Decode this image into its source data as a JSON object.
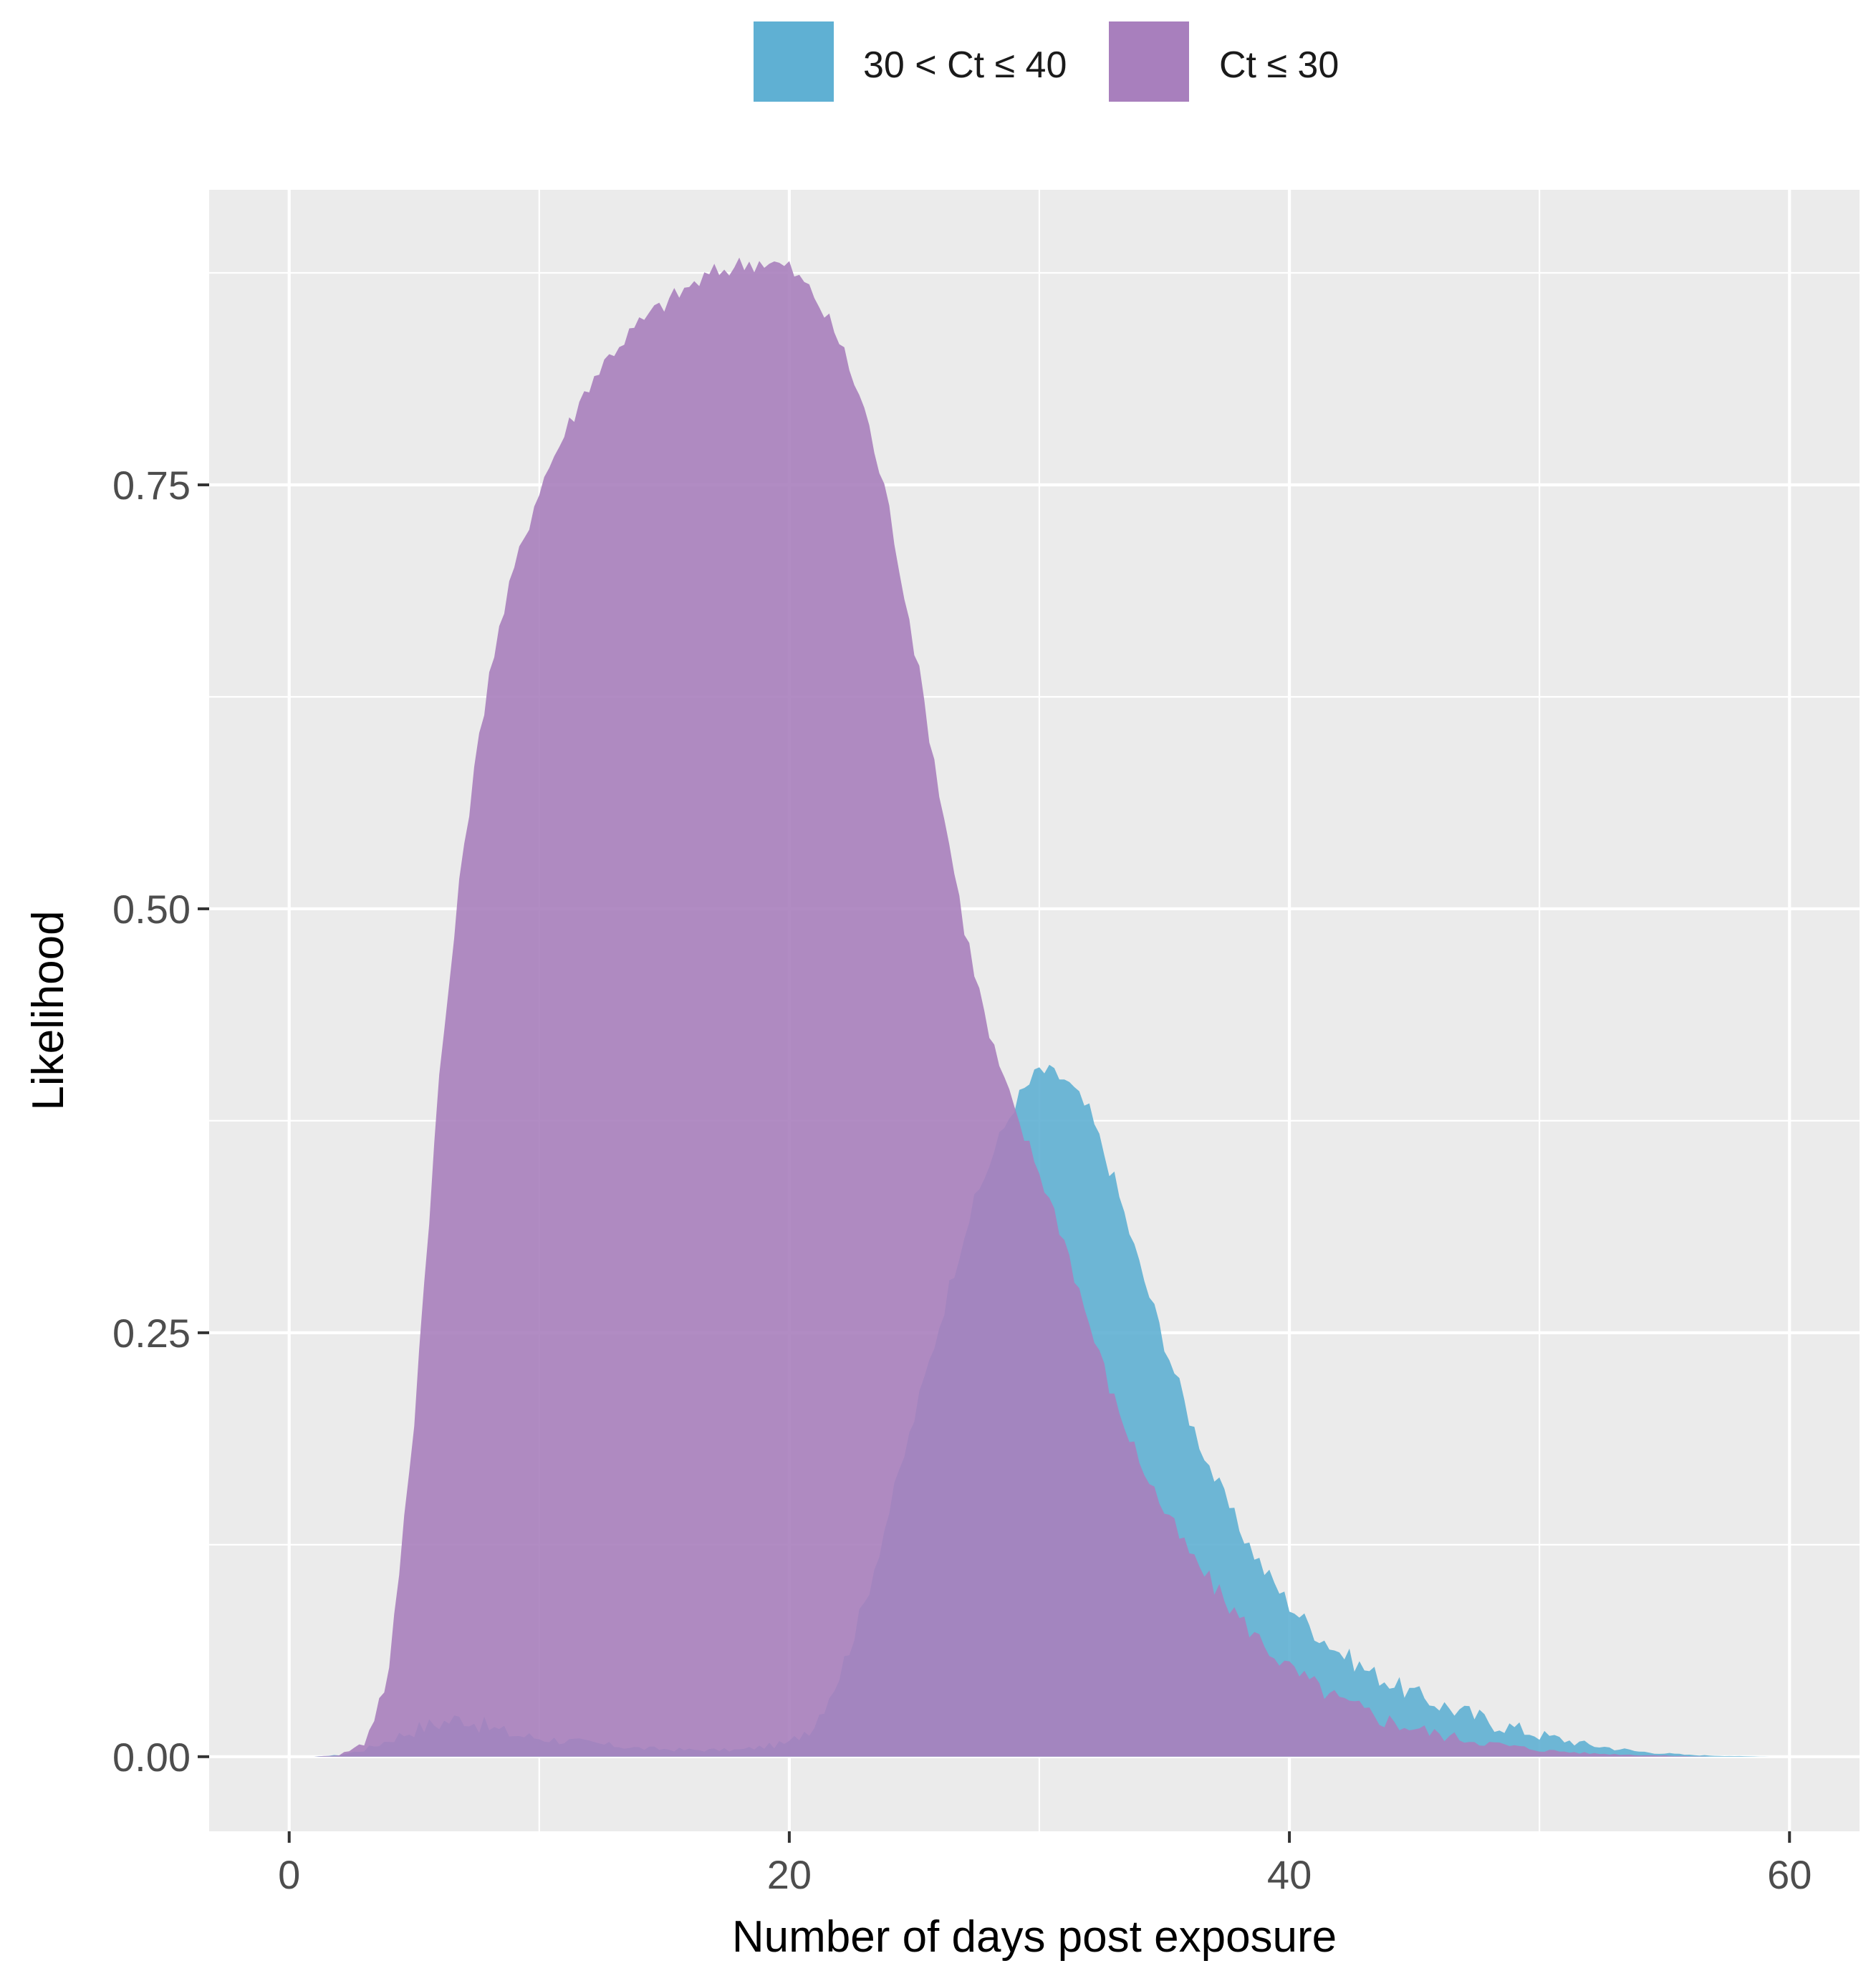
{
  "chart_data": {
    "type": "area",
    "title": "",
    "xlabel": "Number of days post exposure",
    "ylabel": "Likelihood",
    "xlim": [
      -3.2,
      62.8
    ],
    "ylim": [
      -0.044,
      0.924
    ],
    "xticks": [
      0,
      20,
      40,
      60
    ],
    "xtick_labels": [
      "0",
      "20",
      "40",
      "60"
    ],
    "yticks": [
      0,
      0.25,
      0.5,
      0.75
    ],
    "ytick_labels": [
      "0.00",
      "0.25",
      "0.50",
      "0.75"
    ],
    "grid": true,
    "legend_position": "top",
    "series": [
      {
        "name": "30 < Ct ≤ 40",
        "color": "#5fb0d3",
        "x": [
          1,
          2,
          3,
          4,
          5,
          6,
          7,
          8,
          9,
          10,
          12,
          14,
          16,
          18,
          20,
          21,
          22,
          23,
          24,
          25,
          26,
          27,
          28,
          29,
          30,
          31,
          32,
          33,
          34,
          35,
          36,
          37,
          38,
          39,
          40,
          41,
          42,
          43,
          44,
          45,
          46,
          48,
          50,
          52,
          54,
          56,
          58,
          59.5
        ],
        "values": [
          0,
          0.001,
          0.004,
          0.01,
          0.016,
          0.02,
          0.023,
          0.017,
          0.013,
          0.011,
          0.008,
          0.005,
          0.004,
          0.004,
          0.008,
          0.02,
          0.048,
          0.09,
          0.145,
          0.2,
          0.255,
          0.31,
          0.35,
          0.385,
          0.405,
          0.4,
          0.38,
          0.34,
          0.29,
          0.245,
          0.2,
          0.165,
          0.135,
          0.11,
          0.09,
          0.074,
          0.062,
          0.052,
          0.044,
          0.037,
          0.031,
          0.021,
          0.013,
          0.007,
          0.003,
          0.001,
          0.0003,
          0
        ]
      },
      {
        "name": "Ct ≤ 30",
        "color": "#a87fbd",
        "x": [
          1,
          2,
          3,
          4,
          5,
          6,
          7,
          8,
          9,
          10,
          11,
          12,
          13,
          14,
          15,
          16,
          17,
          18,
          19,
          20,
          21,
          22,
          23,
          24,
          25,
          26,
          27,
          28,
          29,
          30,
          31,
          32,
          33,
          34,
          35,
          36,
          37,
          38,
          39,
          40,
          42,
          44,
          46,
          48,
          50,
          52,
          54,
          56,
          57
        ],
        "values": [
          0,
          0.001,
          0.008,
          0.05,
          0.2,
          0.4,
          0.54,
          0.64,
          0.7,
          0.748,
          0.78,
          0.81,
          0.83,
          0.845,
          0.857,
          0.867,
          0.875,
          0.88,
          0.882,
          0.878,
          0.862,
          0.835,
          0.795,
          0.735,
          0.655,
          0.57,
          0.49,
          0.425,
          0.38,
          0.345,
          0.305,
          0.255,
          0.21,
          0.175,
          0.145,
          0.12,
          0.1,
          0.082,
          0.066,
          0.052,
          0.033,
          0.021,
          0.013,
          0.008,
          0.004,
          0.002,
          0.001,
          0.0003,
          0
        ]
      }
    ]
  }
}
